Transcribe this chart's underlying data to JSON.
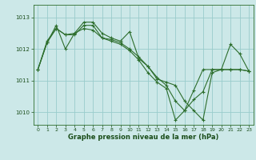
{
  "xlabel": "Graphe pression niveau de la mer (hPa)",
  "bg_color": "#cce8e8",
  "grid_color": "#99cccc",
  "line_color": "#2d6e2d",
  "ylim": [
    1009.6,
    1013.4
  ],
  "xlim": [
    -0.5,
    23.5
  ],
  "yticks": [
    1010,
    1011,
    1012,
    1013
  ],
  "xticks": [
    0,
    1,
    2,
    3,
    4,
    5,
    6,
    7,
    8,
    9,
    10,
    11,
    12,
    13,
    14,
    15,
    16,
    17,
    18,
    19,
    20,
    21,
    22,
    23
  ],
  "series": [
    [
      1011.35,
      1012.2,
      1012.75,
      1012.0,
      1012.5,
      1012.85,
      1012.85,
      1012.5,
      1012.35,
      1012.25,
      1012.55,
      1011.7,
      1011.45,
      1011.05,
      1010.95,
      1010.85,
      1010.35,
      1010.05,
      1009.75,
      1011.25,
      1011.35,
      1011.35,
      1011.35,
      1011.3
    ],
    [
      1011.35,
      1012.2,
      1012.65,
      1012.45,
      1012.45,
      1012.75,
      1012.75,
      1012.35,
      1012.25,
      1012.15,
      1011.95,
      1011.65,
      1011.25,
      1010.95,
      1010.75,
      1009.75,
      1010.05,
      1010.4,
      1010.65,
      1011.35,
      1011.35,
      1012.15,
      1011.85,
      1011.3
    ],
    [
      1011.35,
      1012.25,
      1012.65,
      1012.45,
      1012.5,
      1012.65,
      1012.6,
      1012.35,
      1012.3,
      1012.2,
      1012.0,
      1011.75,
      1011.45,
      1011.1,
      1010.85,
      1010.35,
      1010.05,
      1010.7,
      1011.35,
      1011.35,
      1011.35,
      1011.35,
      1011.35,
      1011.3
    ]
  ]
}
